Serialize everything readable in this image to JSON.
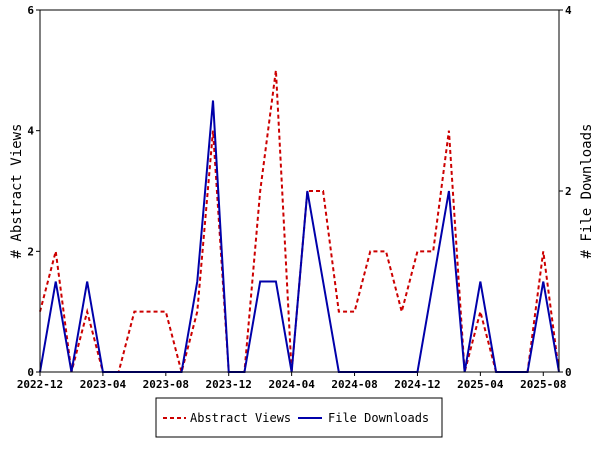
{
  "chart_data": {
    "type": "line",
    "x_tick_labels": [
      "2022-12",
      "2023-04",
      "2023-08",
      "2023-12",
      "2024-04",
      "2024-08",
      "2024-12",
      "2025-04",
      "2025-08"
    ],
    "y_left": {
      "label": "# Abstract Views",
      "lim": [
        0,
        6
      ],
      "ticks": [
        0,
        2,
        4,
        6
      ]
    },
    "y_right": {
      "label": "# File Downloads",
      "lim": [
        0,
        4
      ],
      "ticks": [
        0,
        2,
        4
      ]
    },
    "grid": false,
    "legend_position": "bottom-center",
    "x": [
      "2022-12",
      "2023-01",
      "2023-02",
      "2023-03",
      "2023-04",
      "2023-05",
      "2023-06",
      "2023-07",
      "2023-08",
      "2023-09",
      "2023-10",
      "2023-11",
      "2023-12",
      "2024-01",
      "2024-02",
      "2024-03",
      "2024-04",
      "2024-05",
      "2024-06",
      "2024-07",
      "2024-08",
      "2024-09",
      "2024-10",
      "2024-11",
      "2024-12",
      "2025-01",
      "2025-02",
      "2025-03",
      "2025-04",
      "2025-05",
      "2025-06",
      "2025-07",
      "2025-08",
      "2025-09"
    ],
    "series": [
      {
        "name": "Abstract Views",
        "axis": "left",
        "color": "#cc0000",
        "dash": true,
        "values": [
          1,
          2,
          0,
          1,
          0,
          0,
          1,
          1,
          1,
          0,
          1,
          4,
          0,
          0,
          3,
          5,
          0,
          3,
          3,
          1,
          1,
          2,
          2,
          1,
          2,
          2,
          4,
          0,
          1,
          0,
          0,
          0,
          2,
          0
        ]
      },
      {
        "name": "File Downloads",
        "axis": "right",
        "color": "#0000aa",
        "dash": false,
        "values": [
          0,
          1,
          0,
          1,
          0,
          0,
          0,
          0,
          0,
          0,
          1,
          3,
          0,
          0,
          1,
          1,
          0,
          2,
          1,
          0,
          0,
          0,
          0,
          0,
          0,
          1,
          2,
          0,
          1,
          0,
          0,
          0,
          1,
          0
        ]
      }
    ]
  }
}
